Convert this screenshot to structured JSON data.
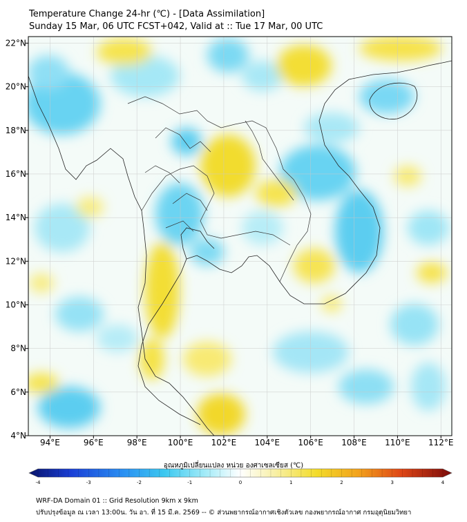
{
  "header": {
    "title_line1": "Temperature Change 24-hr (℃) - [Data Assimilation]",
    "title_line2": "Sunday 15 Mar, 06 UTC FCST+042, Valid at :: Tue 17 Mar, 00 UTC"
  },
  "map": {
    "lat_ticks": [
      "22°N",
      "20°N",
      "18°N",
      "16°N",
      "14°N",
      "12°N",
      "10°N",
      "8°N",
      "6°N",
      "4°N"
    ],
    "lon_ticks": [
      "94°E",
      "96°E",
      "98°E",
      "100°E",
      "102°E",
      "104°E",
      "106°E",
      "108°E",
      "110°E",
      "112°E"
    ],
    "lat_range": [
      4,
      22.3
    ],
    "lon_range": [
      93,
      112.5
    ],
    "grid": true,
    "colors": {
      "warm": "#f6e03a",
      "cool": "#3cc8f0",
      "neutral": "#ffffff"
    }
  },
  "colorbar": {
    "label": "อุณหภูมิเปลี่ยนแปลง หน่วย องศาเซลเซียส (℃)",
    "ticks": [
      "-4",
      "-3",
      "-2",
      "-1",
      "0",
      "1",
      "2",
      "3",
      "4"
    ],
    "range": [
      -4,
      4
    ]
  },
  "footer": {
    "line1": "WRF-DA Domain 01 :: Grid Resolution 9km x 9km",
    "line2": "ปรับปรุงข้อมูล ณ เวลา 13:00น. วัน อา. ที่ 15 มี.ค. 2569 -- © ส่วนพยากรณ์อากาศเชิงตัวเลข กองพยากรณ์อากาศ กรมอุตุนิยมวิทยา"
  }
}
